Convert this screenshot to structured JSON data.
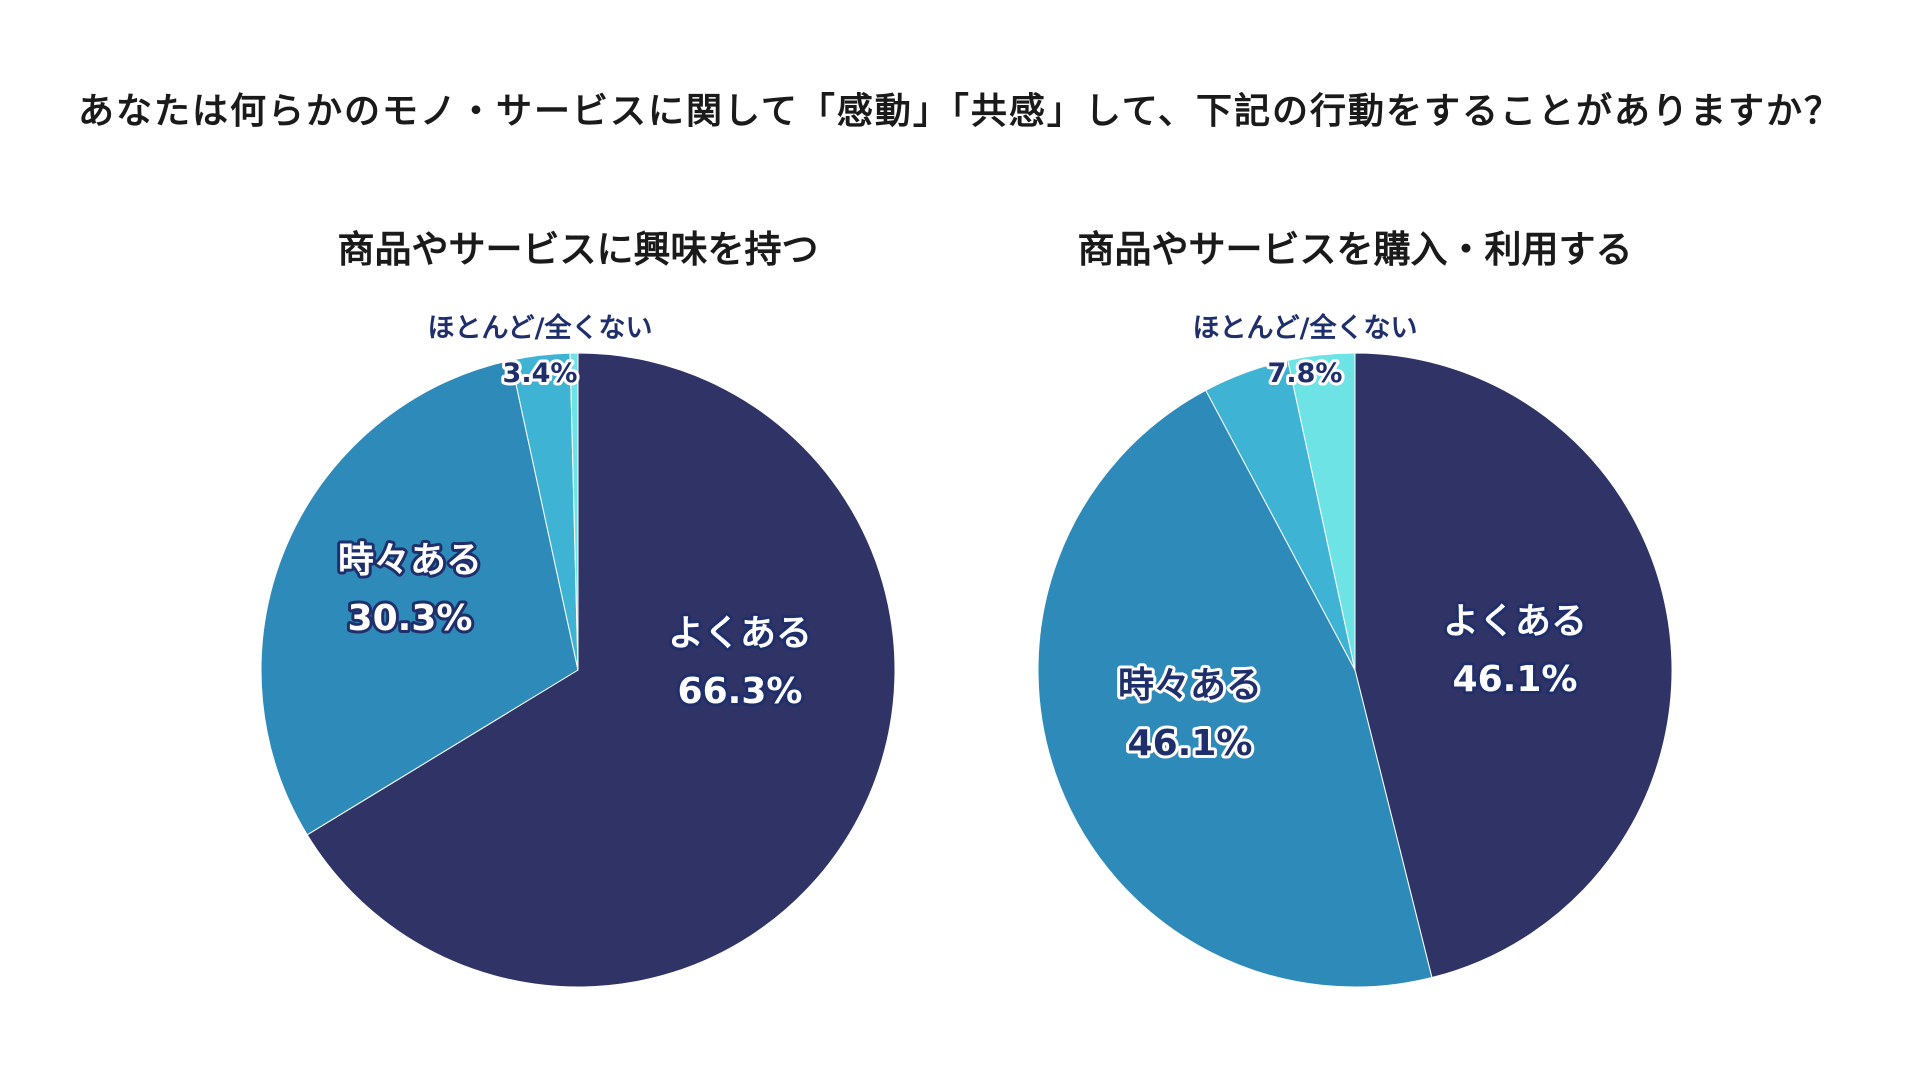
{
  "main_title": "あなたは何らかのモノ・サービスに関して「感動」「共感」して、下記の行動をすることがありますか？",
  "colors": {
    "often": "#2f3366",
    "sometimes": "#2e8ab8",
    "rarely": "#3fb3d4",
    "never": "#6de3e6",
    "label_light": "#ffffff",
    "label_dark": "#1f2f6b"
  },
  "chart_data": [
    {
      "type": "pie",
      "title": "商品やサービスに興味を持つ",
      "slices": [
        {
          "label": "よくある",
          "value": 66.3,
          "value_text": "66.3%",
          "color_key": "often"
        },
        {
          "label": "時々ある",
          "value": 30.3,
          "value_text": "30.3%",
          "color_key": "sometimes"
        },
        {
          "label": "",
          "value": 3.0,
          "value_text": "",
          "color_key": "rarely"
        },
        {
          "label": "",
          "value": 0.4,
          "value_text": "",
          "color_key": "never"
        }
      ],
      "combined_label": {
        "label": "ほとんど/全くない",
        "value_text": "3.4%"
      }
    },
    {
      "type": "pie",
      "title": "商品やサービスを購入・利用する",
      "slices": [
        {
          "label": "よくある",
          "value": 46.1,
          "value_text": "46.1%",
          "color_key": "often"
        },
        {
          "label": "時々ある",
          "value": 46.1,
          "value_text": "46.1%",
          "color_key": "sometimes"
        },
        {
          "label": "",
          "value": 4.4,
          "value_text": "",
          "color_key": "rarely"
        },
        {
          "label": "",
          "value": 3.4,
          "value_text": "",
          "color_key": "never"
        }
      ],
      "combined_label": {
        "label": "ほとんど/全くない",
        "value_text": "7.8%"
      }
    }
  ]
}
